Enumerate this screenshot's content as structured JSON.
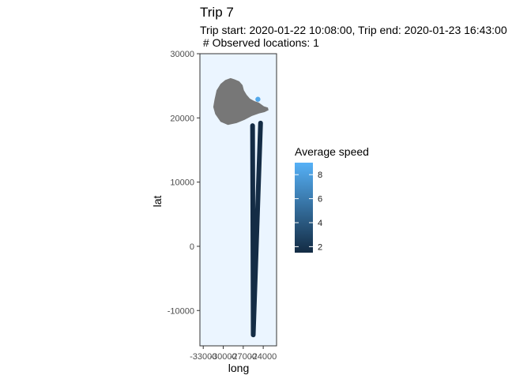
{
  "chart_data": {
    "type": "line",
    "title": "Trip 7",
    "subtitle_line1": "Trip start: 2020-01-22 10:08:00, Trip end: 2020-01-23 16:43:00",
    "subtitle_line2": " # Observed locations: 1",
    "xlabel": "long",
    "ylabel": "lat",
    "xlim": [
      -33500,
      -22000
    ],
    "ylim": [
      -15500,
      30000
    ],
    "x_ticks": [
      -33000,
      -30000,
      -27000,
      -24000
    ],
    "x_tick_labels": [
      "-33000",
      "-30000",
      "-27000",
      "-24000"
    ],
    "y_ticks": [
      -10000,
      0,
      10000,
      20000,
      30000
    ],
    "y_tick_labels": [
      "-10000",
      "0",
      "10000",
      "20000",
      "30000"
    ],
    "panel_background": "#ebf5ff",
    "landmass_color": "#777777",
    "landmass_outline": [
      [
        -31300,
        22900
      ],
      [
        -31000,
        24300
      ],
      [
        -30400,
        25300
      ],
      [
        -29700,
        25900
      ],
      [
        -28900,
        26200
      ],
      [
        -28300,
        26000
      ],
      [
        -27600,
        25700
      ],
      [
        -27100,
        25100
      ],
      [
        -26900,
        24300
      ],
      [
        -26500,
        23600
      ],
      [
        -26000,
        23000
      ],
      [
        -25300,
        22600
      ],
      [
        -24700,
        22400
      ],
      [
        -23900,
        21800
      ],
      [
        -23300,
        21600
      ],
      [
        -23200,
        21200
      ],
      [
        -23800,
        20900
      ],
      [
        -24600,
        20700
      ],
      [
        -25700,
        20300
      ],
      [
        -26800,
        19700
      ],
      [
        -28000,
        19200
      ],
      [
        -29300,
        18900
      ],
      [
        -30400,
        19400
      ],
      [
        -31200,
        20600
      ],
      [
        -31500,
        21700
      ]
    ],
    "track_color": "#142c45",
    "tracks": [
      {
        "points": [
          [
            -25600,
            18800
          ],
          [
            -25500,
            -13800
          ],
          [
            -24400,
            19200
          ]
        ]
      }
    ],
    "observed_points": [
      {
        "x": -24800,
        "y": 22900,
        "avg_speed": 8.5
      }
    ],
    "legend": {
      "title": "Average speed",
      "min": 1.5,
      "max": 9,
      "ticks": [
        2,
        4,
        6,
        8
      ],
      "color_low": "#132b43",
      "color_high": "#56b1f7",
      "placement": "right"
    }
  }
}
